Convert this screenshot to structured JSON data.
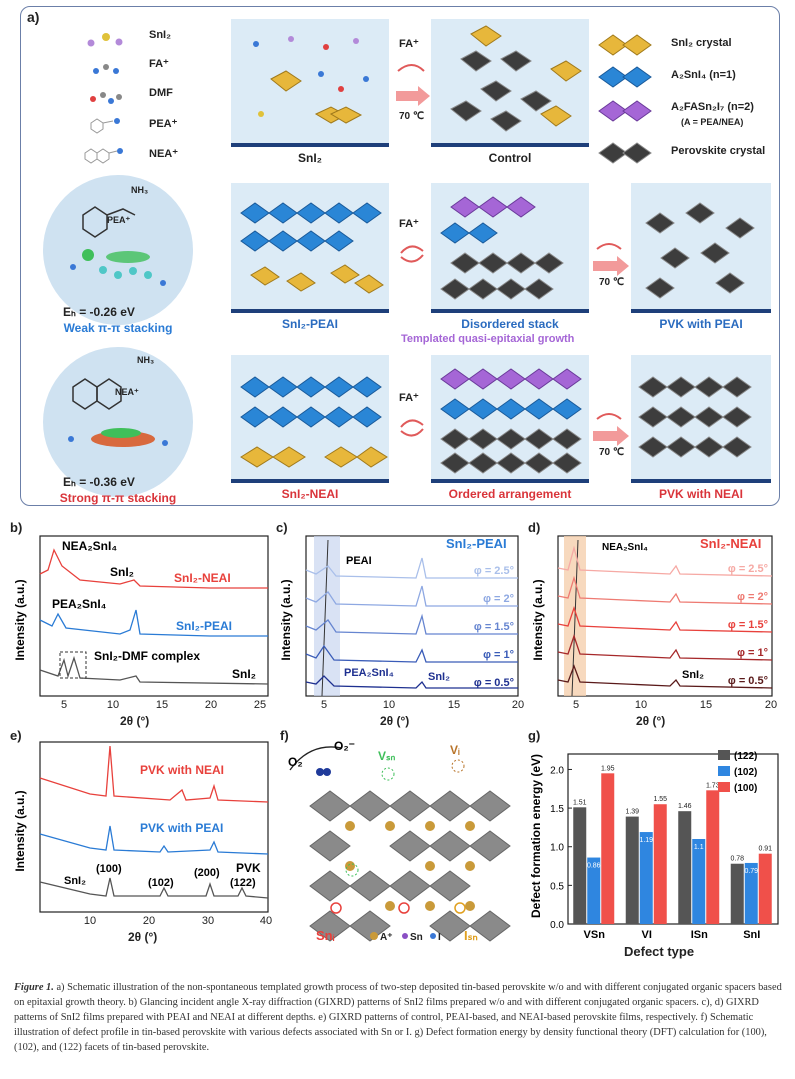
{
  "panel_a": {
    "label": "a)",
    "molecules": [
      "SnI₂",
      "FA⁺",
      "DMF",
      "PEA⁺",
      "NEA⁺"
    ],
    "boxes": {
      "sni2": "SnI₂",
      "control": "Control",
      "sni2_peai": "SnI₂-PEAI",
      "disordered": "Disordered stack",
      "pvk_peai": "PVK with PEAI",
      "sni2_neai": "SnI₂-NEAI",
      "ordered": "Ordered arrangement",
      "pvk_neai": "PVK with NEAI"
    },
    "fa": "FA⁺",
    "temp": "70 ℃",
    "templated": "Templated quasi-epitaxial growth",
    "legend": [
      "SnI₂ crystal",
      "A₂SnI₄ (n=1)",
      "A₂FASn₂I₇ (n=2)",
      "(A = PEA/NEA)",
      "Perovskite crystal"
    ],
    "peai_mol": "PEA⁺",
    "neai_mol": "NEA⁺",
    "nh3": "NH₃",
    "eb_weak": "Eₕ = -0.26 eV",
    "eb_strong": "Eₕ = -0.36 eV",
    "weak": "Weak π-π stacking",
    "strong": "Strong π-π stacking"
  },
  "panel_b": {
    "label": "b)",
    "ylabel": "Intensity (a.u.)",
    "xlabel": "2θ (°)",
    "ticks": [
      "5",
      "10",
      "15",
      "20",
      "25"
    ],
    "annotations": [
      "NEA₂SnI₄",
      "SnI₂",
      "PEA₂SnI₄",
      "SnI₂-DMF complex",
      "SnI₂"
    ],
    "series": [
      "SnI₂-NEAI",
      "SnI₂-PEAI"
    ]
  },
  "panel_c": {
    "label": "c)",
    "title": "SnI₂-PEAI",
    "ylabel": "Intensity (a.u.)",
    "xlabel": "2θ (°)",
    "ticks": [
      "5",
      "10",
      "15",
      "20"
    ],
    "annotations": [
      "PEAI",
      "PEA₂SnI₄",
      "SnI₂"
    ],
    "series": [
      "φ = 2.5°",
      "φ = 2°",
      "φ = 1.5°",
      "φ = 1°",
      "φ = 0.5°"
    ]
  },
  "panel_d": {
    "label": "d)",
    "title": "SnI₂-NEAI",
    "ylabel": "Intensity (a.u.)",
    "xlabel": "2θ (°)",
    "ticks": [
      "5",
      "10",
      "15",
      "20"
    ],
    "annotations": [
      "NEA₂SnI₄",
      "SnI₂"
    ],
    "series": [
      "φ = 2.5°",
      "φ = 2°",
      "φ = 1.5°",
      "φ = 1°",
      "φ = 0.5°"
    ]
  },
  "panel_e": {
    "label": "e)",
    "ylabel": "Intensity (a.u.)",
    "xlabel": "2θ (°)",
    "ticks": [
      "10",
      "20",
      "30",
      "40"
    ],
    "series": [
      "PVK with NEAI",
      "PVK with PEAI",
      "PVK"
    ],
    "annotations": [
      "SnI₂",
      "(100)",
      "(102)",
      "(200)",
      "(122)"
    ]
  },
  "panel_f": {
    "label": "f)",
    "o2": "O₂",
    "o2minus": "O₂⁻",
    "vsn": "Vₛₙ",
    "vi": "Vᵢ",
    "sni": "Snᵢ",
    "isn": "Iₛₙ",
    "legend": [
      "A⁺",
      "Sn",
      "I"
    ]
  },
  "panel_g": {
    "label": "g)",
    "ylabel": "Defect formation energy (eV)",
    "xlabel": "Defect type",
    "yticks": [
      "0.0",
      "0.5",
      "1.0",
      "1.5",
      "2.0"
    ],
    "legend": [
      "(122)",
      "(102)",
      "(100)"
    ]
  },
  "chart_data": {
    "type": "bar",
    "categories": [
      "V_Sn",
      "V_I",
      "I_Sn",
      "Sn_I"
    ],
    "series": [
      {
        "name": "(122)",
        "values": [
          1.51,
          1.39,
          1.46,
          0.78
        ]
      },
      {
        "name": "(102)",
        "values": [
          0.86,
          1.19,
          1.1,
          0.79
        ]
      },
      {
        "name": "(100)",
        "values": [
          1.95,
          1.55,
          1.73,
          0.91
        ]
      }
    ],
    "xlabel": "Defect type",
    "ylabel": "Defect formation energy (eV)",
    "ylim": [
      0,
      2.2
    ],
    "colors": [
      "#555555",
      "#2f86e0",
      "#f0504a"
    ]
  },
  "caption": {
    "lead": "Figure 1.",
    "text": " a) Schematic illustration of the non-spontaneous templated growth process of two-step deposited tin-based perovskite w/o and with different conjugated organic spacers based on epitaxial growth theory. b) Glancing incident angle X-ray diffraction (GIXRD) patterns of SnI2 films prepared w/o and with different conjugated organic spacers. c), d) GIXRD patterns of SnI2 films prepared with PEAI and NEAI at different depths. e) GIXRD patterns of control, PEAI-based, and NEAI-based perovskite films, respectively. f) Schematic illustration of defect profile in tin-based perovskite with various defects associated with Sn or I. g) Defect formation energy by density functional theory (DFT) calculation for (100), (102), and (122) facets of tin-based perovskite."
  },
  "colors": {
    "red": "#e8413c",
    "blue": "#2a7bd5",
    "dark": "#444444",
    "box_bg": "#dcebf6",
    "navy": "#1e3f7a"
  }
}
